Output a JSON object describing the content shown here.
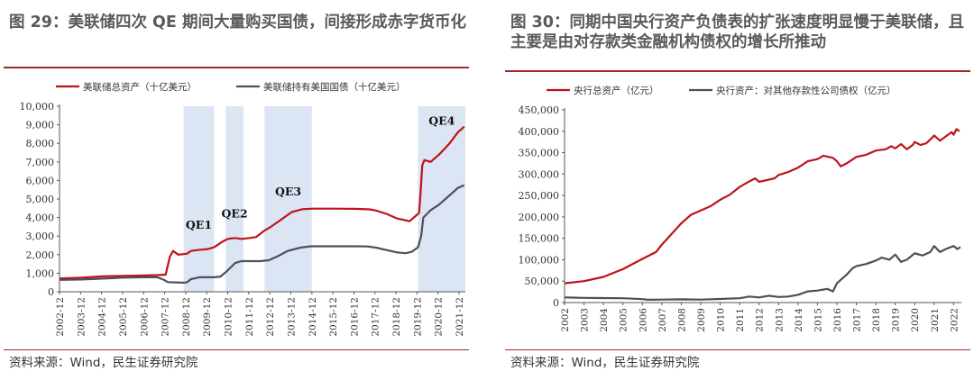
{
  "panels": [
    {
      "title": "图 29：美联储四次 QE 期间大量购买国债，间接形成赤字货币化",
      "source": "资料来源：Wind，民生证券研究院",
      "chart_data": {
        "type": "line",
        "x_tick_labels": [
          "2002-12",
          "2003-12",
          "2004-12",
          "2005-12",
          "2006-12",
          "2007-12",
          "2008-12",
          "2009-12",
          "2010-12",
          "2011-12",
          "2012-12",
          "2013-12",
          "2014-12",
          "2015-12",
          "2016-12",
          "2017-12",
          "2018-12",
          "2019-12",
          "2020-12",
          "2021-12"
        ],
        "ylim": [
          0,
          10000
        ],
        "y_ticks": [
          "0",
          "1,000",
          "2,000",
          "3,000",
          "4,000",
          "5,000",
          "6,000",
          "7,000",
          "8,000",
          "9,000",
          "10,000"
        ],
        "y_tick_values": [
          0,
          1000,
          2000,
          3000,
          4000,
          5000,
          6000,
          7000,
          8000,
          9000,
          10000
        ],
        "xlim": [
          2002.95,
          2022.25
        ],
        "series": [
          {
            "name": "美联储总资产（十亿美元）",
            "color": "#c0121a",
            "points": [
              [
                2002.95,
                720
              ],
              [
                2004,
                760
              ],
              [
                2005,
                830
              ],
              [
                2006,
                860
              ],
              [
                2007,
                880
              ],
              [
                2007.6,
                900
              ],
              [
                2008.0,
                920
              ],
              [
                2008.2,
                1900
              ],
              [
                2008.35,
                2200
              ],
              [
                2008.6,
                2000
              ],
              [
                2009.0,
                2050
              ],
              [
                2009.2,
                2200
              ],
              [
                2009.5,
                2250
              ],
              [
                2010.0,
                2300
              ],
              [
                2010.3,
                2400
              ],
              [
                2010.7,
                2700
              ],
              [
                2010.95,
                2850
              ],
              [
                2011.3,
                2900
              ],
              [
                2011.6,
                2850
              ],
              [
                2012.0,
                2900
              ],
              [
                2012.3,
                2950
              ],
              [
                2012.7,
                3300
              ],
              [
                2013.0,
                3500
              ],
              [
                2013.5,
                3900
              ],
              [
                2014.0,
                4300
              ],
              [
                2014.5,
                4450
              ],
              [
                2015.0,
                4480
              ],
              [
                2016.0,
                4480
              ],
              [
                2017.0,
                4470
              ],
              [
                2017.7,
                4440
              ],
              [
                2018.0,
                4380
              ],
              [
                2018.5,
                4200
              ],
              [
                2019.0,
                3950
              ],
              [
                2019.6,
                3800
              ],
              [
                2019.75,
                3950
              ],
              [
                2019.95,
                4150
              ],
              [
                2020.05,
                4250
              ],
              [
                2020.12,
                5300
              ],
              [
                2020.2,
                6800
              ],
              [
                2020.3,
                7100
              ],
              [
                2020.6,
                7000
              ],
              [
                2021.0,
                7400
              ],
              [
                2021.5,
                8000
              ],
              [
                2021.9,
                8600
              ],
              [
                2022.2,
                8900
              ]
            ]
          },
          {
            "name": "美联储持有美国国债（十亿美元）",
            "color": "#4d4f5a",
            "points": [
              [
                2002.95,
                640
              ],
              [
                2004,
                660
              ],
              [
                2005,
                710
              ],
              [
                2006,
                760
              ],
              [
                2007,
                780
              ],
              [
                2007.6,
                780
              ],
              [
                2007.9,
                650
              ],
              [
                2008.1,
                520
              ],
              [
                2008.8,
                490
              ],
              [
                2009.0,
                500
              ],
              [
                2009.2,
                680
              ],
              [
                2009.6,
                780
              ],
              [
                2010.3,
                780
              ],
              [
                2010.6,
                820
              ],
              [
                2010.9,
                1100
              ],
              [
                2011.3,
                1550
              ],
              [
                2011.6,
                1650
              ],
              [
                2012.5,
                1650
              ],
              [
                2012.9,
                1700
              ],
              [
                2013.3,
                1900
              ],
              [
                2013.8,
                2200
              ],
              [
                2014.4,
                2380
              ],
              [
                2014.9,
                2450
              ],
              [
                2016.0,
                2450
              ],
              [
                2017.0,
                2450
              ],
              [
                2017.6,
                2440
              ],
              [
                2018.0,
                2380
              ],
              [
                2018.5,
                2250
              ],
              [
                2019.0,
                2120
              ],
              [
                2019.4,
                2080
              ],
              [
                2019.7,
                2150
              ],
              [
                2020.0,
                2400
              ],
              [
                2020.15,
                3000
              ],
              [
                2020.25,
                4000
              ],
              [
                2020.6,
                4400
              ],
              [
                2021.0,
                4700
              ],
              [
                2021.5,
                5200
              ],
              [
                2021.9,
                5600
              ],
              [
                2022.2,
                5750
              ]
            ]
          }
        ],
        "shaded_periods": [
          {
            "label": "QE1",
            "from": 2008.85,
            "to": 2010.3,
            "label_y": 3400
          },
          {
            "label": "QE2",
            "from": 2010.85,
            "to": 2011.7,
            "label_y": 4000
          },
          {
            "label": "QE3",
            "from": 2012.7,
            "to": 2014.95,
            "label_y": 5200
          },
          {
            "label": "QE4",
            "from": 2020.0,
            "to": 2022.25,
            "label_y": 9000
          }
        ],
        "grid": false,
        "legend_position": "top"
      }
    },
    {
      "title": "图 30：同期中国央行资产负债表的扩张速度明显慢于美联储，且主要是由对存款类金融机构债权的增长所推动",
      "source": "资料来源：Wind，民生证券研究院",
      "chart_data": {
        "type": "line",
        "x_tick_labels": [
          "2002",
          "2003",
          "2004",
          "2005",
          "2006",
          "2007",
          "2008",
          "2009",
          "2010",
          "2011",
          "2012",
          "2013",
          "2014",
          "2015",
          "2016",
          "2017",
          "2018",
          "2019",
          "2020",
          "2021",
          "2022"
        ],
        "ylim": [
          0,
          450000
        ],
        "y_ticks": [
          "0",
          "50,000",
          "100,000",
          "150,000",
          "200,000",
          "250,000",
          "300,000",
          "350,000",
          "400,000",
          "450,000"
        ],
        "y_tick_values": [
          0,
          50000,
          100000,
          150000,
          200000,
          250000,
          300000,
          350000,
          400000,
          450000
        ],
        "xlim": [
          2002.0,
          2022.4
        ],
        "series": [
          {
            "name": "央行总资产（亿元）",
            "color": "#c0121a",
            "points": [
              [
                2002.0,
                45000
              ],
              [
                2003.0,
                50000
              ],
              [
                2004.0,
                60000
              ],
              [
                2005.0,
                78000
              ],
              [
                2006.0,
                102000
              ],
              [
                2006.7,
                118000
              ],
              [
                2007.0,
                135000
              ],
              [
                2007.6,
                165000
              ],
              [
                2008.0,
                185000
              ],
              [
                2008.5,
                205000
              ],
              [
                2009.0,
                215000
              ],
              [
                2009.5,
                225000
              ],
              [
                2010.0,
                240000
              ],
              [
                2010.5,
                252000
              ],
              [
                2011.0,
                270000
              ],
              [
                2011.5,
                283000
              ],
              [
                2011.8,
                290000
              ],
              [
                2012.0,
                282000
              ],
              [
                2012.3,
                285000
              ],
              [
                2012.8,
                290000
              ],
              [
                2013.0,
                298000
              ],
              [
                2013.5,
                305000
              ],
              [
                2014.0,
                315000
              ],
              [
                2014.5,
                330000
              ],
              [
                2015.0,
                335000
              ],
              [
                2015.3,
                343000
              ],
              [
                2015.8,
                338000
              ],
              [
                2016.0,
                330000
              ],
              [
                2016.2,
                318000
              ],
              [
                2016.5,
                325000
              ],
              [
                2017.0,
                340000
              ],
              [
                2017.5,
                345000
              ],
              [
                2018.0,
                355000
              ],
              [
                2018.5,
                358000
              ],
              [
                2018.8,
                365000
              ],
              [
                2019.0,
                360000
              ],
              [
                2019.3,
                370000
              ],
              [
                2019.6,
                358000
              ],
              [
                2019.9,
                368000
              ],
              [
                2020.0,
                375000
              ],
              [
                2020.3,
                368000
              ],
              [
                2020.6,
                372000
              ],
              [
                2020.9,
                385000
              ],
              [
                2021.0,
                390000
              ],
              [
                2021.3,
                378000
              ],
              [
                2021.6,
                388000
              ],
              [
                2021.9,
                398000
              ],
              [
                2022.0,
                392000
              ],
              [
                2022.15,
                405000
              ],
              [
                2022.3,
                400000
              ]
            ]
          },
          {
            "name": "央行资产：对其他存款性公司债权（亿元）",
            "color": "#4d4f5a",
            "points": [
              [
                2002.0,
                12000
              ],
              [
                2003.0,
                11000
              ],
              [
                2004.0,
                10500
              ],
              [
                2005.0,
                10000
              ],
              [
                2006.0,
                8000
              ],
              [
                2006.3,
                6500
              ],
              [
                2007.0,
                7000
              ],
              [
                2008.0,
                7500
              ],
              [
                2009.0,
                7000
              ],
              [
                2010.0,
                8500
              ],
              [
                2011.0,
                10000
              ],
              [
                2011.5,
                14000
              ],
              [
                2012.0,
                12000
              ],
              [
                2012.5,
                16000
              ],
              [
                2013.0,
                13000
              ],
              [
                2013.5,
                14000
              ],
              [
                2014.0,
                18000
              ],
              [
                2014.5,
                26000
              ],
              [
                2015.0,
                28000
              ],
              [
                2015.5,
                32000
              ],
              [
                2015.8,
                26000
              ],
              [
                2016.0,
                45000
              ],
              [
                2016.5,
                65000
              ],
              [
                2016.8,
                80000
              ],
              [
                2017.0,
                85000
              ],
              [
                2017.5,
                90000
              ],
              [
                2018.0,
                98000
              ],
              [
                2018.3,
                105000
              ],
              [
                2018.7,
                100000
              ],
              [
                2019.0,
                112000
              ],
              [
                2019.3,
                95000
              ],
              [
                2019.6,
                100000
              ],
              [
                2020.0,
                115000
              ],
              [
                2020.4,
                110000
              ],
              [
                2020.8,
                118000
              ],
              [
                2021.0,
                132000
              ],
              [
                2021.3,
                118000
              ],
              [
                2021.6,
                125000
              ],
              [
                2022.0,
                132000
              ],
              [
                2022.2,
                125000
              ],
              [
                2022.35,
                130000
              ]
            ]
          }
        ],
        "grid": false,
        "legend_position": "top"
      }
    }
  ]
}
